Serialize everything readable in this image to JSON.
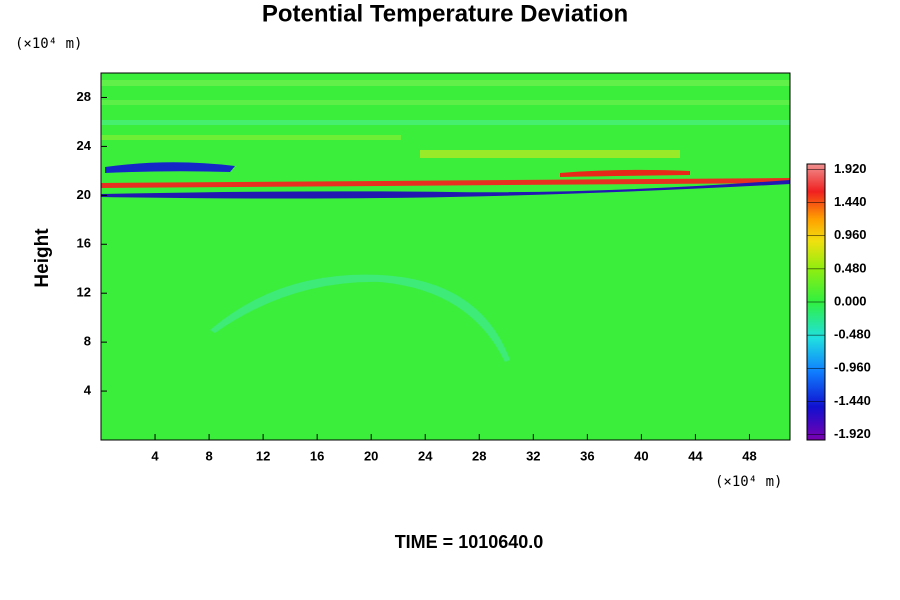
{
  "chart_data": {
    "type": "heatmap",
    "title": "Potential Temperature Deviation",
    "ylabel": "Height",
    "x_unit": "(×10⁴ m)",
    "y_unit": "(×10⁴ m)",
    "footer": "TIME = 1010640.0",
    "xlim": [
      0,
      51
    ],
    "xticks": [
      4,
      8,
      12,
      16,
      20,
      24,
      28,
      32,
      36,
      40,
      44,
      48
    ],
    "ylim": [
      0,
      30
    ],
    "yticks": [
      4,
      8,
      12,
      16,
      20,
      24,
      28
    ],
    "clim": [
      -2,
      2
    ],
    "cticks": [
      {
        "value": 1.92,
        "label": "1.920"
      },
      {
        "value": 1.44,
        "label": "1.440"
      },
      {
        "value": 0.96,
        "label": "0.960"
      },
      {
        "value": 0.48,
        "label": "0.480"
      },
      {
        "value": 0,
        "label": "0.000"
      },
      {
        "value": -0.48,
        "label": "-0.480"
      },
      {
        "value": -0.96,
        "label": "-0.960"
      },
      {
        "value": -1.44,
        "label": "-1.440"
      },
      {
        "value": -1.92,
        "label": "-1.920"
      }
    ]
  }
}
